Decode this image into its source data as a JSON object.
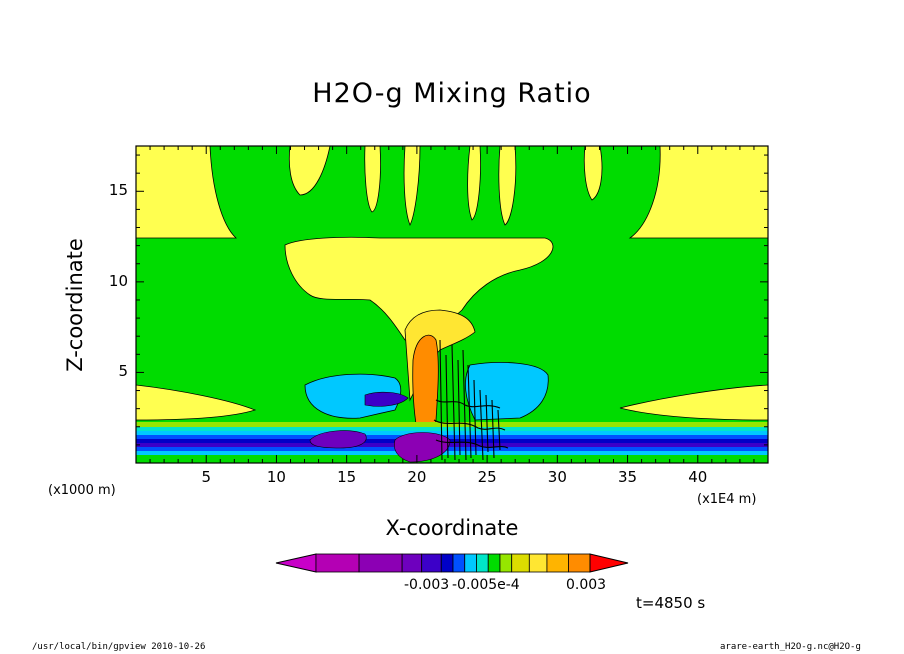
{
  "chart_data": {
    "type": "heatmap",
    "title": "H2O-g Mixing Ratio",
    "xlabel": "X-coordinate",
    "ylabel": "Z-coordinate",
    "x_unit": "(x1E4 m)",
    "y_unit": "(x1000 m)",
    "xlim": [
      0,
      45
    ],
    "ylim": [
      0,
      17.5
    ],
    "x_ticks": [
      "5",
      "10",
      "15",
      "20",
      "25",
      "30",
      "35",
      "40"
    ],
    "y_ticks": [
      "5",
      "10",
      "15"
    ],
    "colorbar_labels": [
      "-0.003",
      "-0.005e-4",
      "0.003"
    ],
    "colorbar_colors": [
      "#c800c8",
      "#b400b4",
      "#8c00b4",
      "#6e00be",
      "#3c00c8",
      "#0000c8",
      "#0050ff",
      "#00c8ff",
      "#00e6c8",
      "#00dc00",
      "#96e600",
      "#dcdc00",
      "#ffe632",
      "#ffb400",
      "#ff8c00",
      "#ff0000"
    ],
    "time_label": "t=4850 s"
  },
  "footer": {
    "left": "/usr/local/bin/gpview  2010-10-26",
    "right": "arare-earth_H2O-g.nc@H2O-g"
  }
}
